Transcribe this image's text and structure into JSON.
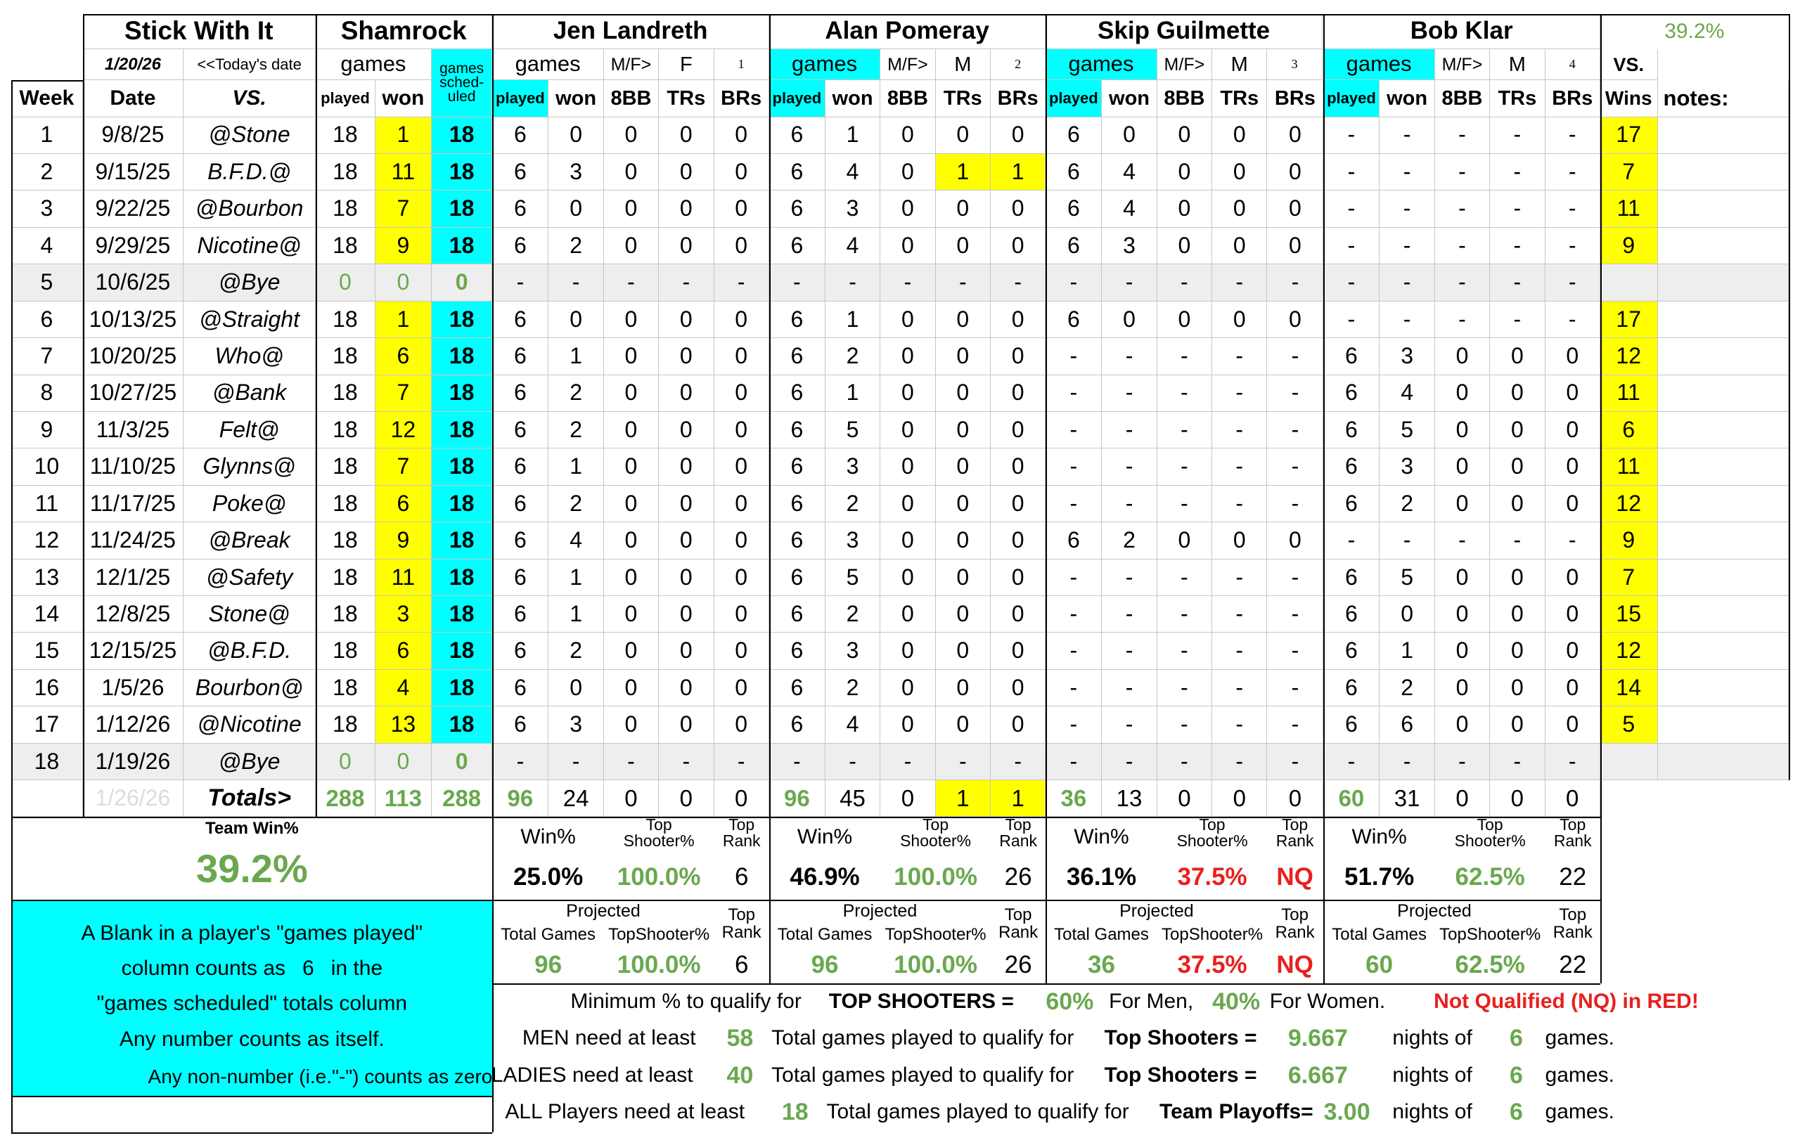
{
  "header": {
    "title": "Stick With It",
    "today_date": "1/20/26",
    "today_label": "<<Today's date",
    "team": "Shamrock",
    "team_games": "games",
    "scheduled": [
      "games",
      "sched-",
      "uled"
    ],
    "overall": "39.2%",
    "vs": "VS.",
    "columns": [
      "Week",
      "Date",
      "VS.",
      "played",
      "won"
    ],
    "wins": "Wins",
    "notes": "notes:"
  },
  "players": [
    {
      "name": "Jen Landreth",
      "games": "games",
      "mf": "M/F>",
      "gender": "F",
      "number": 1,
      "columns": [
        "played",
        "won",
        "8BB",
        "TRs",
        "BRs"
      ]
    },
    {
      "name": "Alan Pomeray",
      "games": "games",
      "mf": "M/F>",
      "gender": "M",
      "number": 2,
      "columns": [
        "played",
        "won",
        "8BB",
        "TRs",
        "BRs"
      ]
    },
    {
      "name": "Skip Guilmette",
      "games": "games",
      "mf": "M/F>",
      "gender": "M",
      "number": 3,
      "columns": [
        "played",
        "won",
        "8BB",
        "TRs",
        "BRs"
      ]
    },
    {
      "name": "Bob Klar",
      "games": "games",
      "mf": "M/F>",
      "gender": "M",
      "number": 4,
      "columns": [
        "played",
        "won",
        "8BB",
        "TRs",
        "BRs"
      ]
    }
  ],
  "rows": [
    [
      1,
      "9/8/25",
      "@Stone",
      18,
      1,
      18,
      6,
      0,
      0,
      0,
      0,
      6,
      1,
      0,
      0,
      0,
      6,
      0,
      0,
      0,
      0,
      "-",
      "-",
      "-",
      "-",
      "-",
      17
    ],
    [
      2,
      "9/15/25",
      "B.F.D.@",
      18,
      11,
      18,
      6,
      3,
      0,
      0,
      0,
      6,
      4,
      0,
      1,
      1,
      6,
      4,
      0,
      0,
      0,
      "-",
      "-",
      "-",
      "-",
      "-",
      7
    ],
    [
      3,
      "9/22/25",
      "@Bourbon",
      18,
      7,
      18,
      6,
      0,
      0,
      0,
      0,
      6,
      3,
      0,
      0,
      0,
      6,
      4,
      0,
      0,
      0,
      "-",
      "-",
      "-",
      "-",
      "-",
      11
    ],
    [
      4,
      "9/29/25",
      "Nicotine@",
      18,
      9,
      18,
      6,
      2,
      0,
      0,
      0,
      6,
      4,
      0,
      0,
      0,
      6,
      3,
      0,
      0,
      0,
      "-",
      "-",
      "-",
      "-",
      "-",
      9
    ],
    [
      5,
      "10/6/25",
      "@Bye",
      0,
      0,
      0,
      "-",
      "-",
      "-",
      "-",
      "-",
      "-",
      "-",
      "-",
      "-",
      "-",
      "-",
      "-",
      "-",
      "-",
      "-",
      "-",
      "-",
      "-",
      "-",
      "-",
      null
    ],
    [
      6,
      "10/13/25",
      "@Straight",
      18,
      1,
      18,
      6,
      0,
      0,
      0,
      0,
      6,
      1,
      0,
      0,
      0,
      6,
      0,
      0,
      0,
      0,
      "-",
      "-",
      "-",
      "-",
      "-",
      17
    ],
    [
      7,
      "10/20/25",
      "Who@",
      18,
      6,
      18,
      6,
      1,
      0,
      0,
      0,
      6,
      2,
      0,
      0,
      0,
      "-",
      "-",
      "-",
      "-",
      "-",
      6,
      3,
      0,
      0,
      0,
      12
    ],
    [
      8,
      "10/27/25",
      "@Bank",
      18,
      7,
      18,
      6,
      2,
      0,
      0,
      0,
      6,
      1,
      0,
      0,
      0,
      "-",
      "-",
      "-",
      "-",
      "-",
      6,
      4,
      0,
      0,
      0,
      11
    ],
    [
      9,
      "11/3/25",
      "Felt@",
      18,
      12,
      18,
      6,
      2,
      0,
      0,
      0,
      6,
      5,
      0,
      0,
      0,
      "-",
      "-",
      "-",
      "-",
      "-",
      6,
      5,
      0,
      0,
      0,
      6
    ],
    [
      10,
      "11/10/25",
      "Glynns@",
      18,
      7,
      18,
      6,
      1,
      0,
      0,
      0,
      6,
      3,
      0,
      0,
      0,
      "-",
      "-",
      "-",
      "-",
      "-",
      6,
      3,
      0,
      0,
      0,
      11
    ],
    [
      11,
      "11/17/25",
      "Poke@",
      18,
      6,
      18,
      6,
      2,
      0,
      0,
      0,
      6,
      2,
      0,
      0,
      0,
      "-",
      "-",
      "-",
      "-",
      "-",
      6,
      2,
      0,
      0,
      0,
      12
    ],
    [
      12,
      "11/24/25",
      "@Break",
      18,
      9,
      18,
      6,
      4,
      0,
      0,
      0,
      6,
      3,
      0,
      0,
      0,
      6,
      2,
      0,
      0,
      0,
      "-",
      "-",
      "-",
      "-",
      "-",
      9
    ],
    [
      13,
      "12/1/25",
      "@Safety",
      18,
      11,
      18,
      6,
      1,
      0,
      0,
      0,
      6,
      5,
      0,
      0,
      0,
      "-",
      "-",
      "-",
      "-",
      "-",
      6,
      5,
      0,
      0,
      0,
      7
    ],
    [
      14,
      "12/8/25",
      "Stone@",
      18,
      3,
      18,
      6,
      1,
      0,
      0,
      0,
      6,
      2,
      0,
      0,
      0,
      "-",
      "-",
      "-",
      "-",
      "-",
      6,
      0,
      0,
      0,
      0,
      15
    ],
    [
      15,
      "12/15/25",
      "@B.F.D.",
      18,
      6,
      18,
      6,
      2,
      0,
      0,
      0,
      6,
      3,
      0,
      0,
      0,
      "-",
      "-",
      "-",
      "-",
      "-",
      6,
      1,
      0,
      0,
      0,
      12
    ],
    [
      16,
      "1/5/26",
      "Bourbon@",
      18,
      4,
      18,
      6,
      0,
      0,
      0,
      0,
      6,
      2,
      0,
      0,
      0,
      "-",
      "-",
      "-",
      "-",
      "-",
      6,
      2,
      0,
      0,
      0,
      14
    ],
    [
      17,
      "1/12/26",
      "@Nicotine",
      18,
      13,
      18,
      6,
      3,
      0,
      0,
      0,
      6,
      4,
      0,
      0,
      0,
      "-",
      "-",
      "-",
      "-",
      "-",
      6,
      6,
      0,
      0,
      0,
      5
    ],
    [
      18,
      "1/19/26",
      "@Bye",
      0,
      0,
      0,
      "-",
      "-",
      "-",
      "-",
      "-",
      "-",
      "-",
      "-",
      "-",
      "-",
      "-",
      "-",
      "-",
      "-",
      "-",
      "-",
      "-",
      "-",
      "-",
      "-",
      null
    ]
  ],
  "totals": {
    "date": "1/26/26",
    "label": "Totals>",
    "values": [
      288,
      113,
      288,
      96,
      24,
      0,
      0,
      0,
      96,
      45,
      0,
      1,
      1,
      36,
      13,
      0,
      0,
      0,
      60,
      31,
      0,
      0,
      0
    ]
  },
  "stats": {
    "team_label": "Team Win%",
    "team_value": "39.2%",
    "players": [
      {
        "win_label": "Win%",
        "win": "25.0%",
        "top_label": [
          "Top",
          "Shooter%"
        ],
        "top": "100.0%",
        "rank_label": [
          "Top",
          "Rank"
        ],
        "rank": 6,
        "projected_label": "Projected",
        "proj_games_label": "Total Games",
        "proj_games": 96,
        "proj_top_label": "TopShooter%",
        "proj_top": "100.0%",
        "proj_rank_label": [
          "Top",
          "Rank"
        ],
        "proj_rank": 6
      },
      {
        "win_label": "Win%",
        "win": "46.9%",
        "top_label": [
          "Top",
          "Shooter%"
        ],
        "top": "100.0%",
        "rank_label": [
          "Top",
          "Rank"
        ],
        "rank": 26,
        "projected_label": "Projected",
        "proj_games_label": "Total Games",
        "proj_games": 96,
        "proj_top_label": "TopShooter%",
        "proj_top": "100.0%",
        "proj_rank_label": [
          "Top",
          "Rank"
        ],
        "proj_rank": 26
      },
      {
        "win_label": "Win%",
        "win": "36.1%",
        "top_label": [
          "Top",
          "Shooter%"
        ],
        "top": "37.5%",
        "rank_label": [
          "Top",
          "Rank"
        ],
        "rank": "NQ",
        "projected_label": "Projected",
        "proj_games_label": "Total Games",
        "proj_games": 36,
        "proj_top_label": "TopShooter%",
        "proj_top": "37.5%",
        "proj_rank_label": [
          "Top",
          "Rank"
        ],
        "proj_rank": "NQ"
      },
      {
        "win_label": "Win%",
        "win": "51.7%",
        "top_label": [
          "Top",
          "Shooter%"
        ],
        "top": "62.5%",
        "rank_label": [
          "Top",
          "Rank"
        ],
        "rank": 22,
        "projected_label": "Projected",
        "proj_games_label": "Total Games",
        "proj_games": 60,
        "proj_top_label": "TopShooter%",
        "proj_top": "62.5%",
        "proj_rank_label": [
          "Top",
          "Rank"
        ],
        "proj_rank": 22
      }
    ]
  },
  "note": {
    "line1": "A Blank in a player's \"games played\"",
    "line2": [
      "column counts as",
      6,
      "in the"
    ],
    "line3": "\"games scheduled\" totals column",
    "line4": "Any number counts as itself.",
    "line5": "Any non-number (i.e.\"-\") counts as zero"
  },
  "footer": [
    [
      "Minimum % to qualify for",
      "TOP SHOOTERS =",
      "60%",
      "For Men,",
      "40%",
      "For Women.",
      "Not Qualified (NQ) in RED!"
    ],
    [
      "MEN need at least",
      58,
      "Total games played to qualify for",
      "Top Shooters =",
      9.667,
      "nights of",
      6,
      "games."
    ],
    [
      "LADIES need at least",
      40,
      "Total games played to qualify for",
      "Top Shooters =",
      6.667,
      "nights of",
      6,
      "games."
    ],
    [
      "ALL Players need at least",
      18,
      "Total games played to qualify for",
      "Team Playoffs=",
      "3.00",
      "nights of",
      6,
      "games."
    ]
  ]
}
